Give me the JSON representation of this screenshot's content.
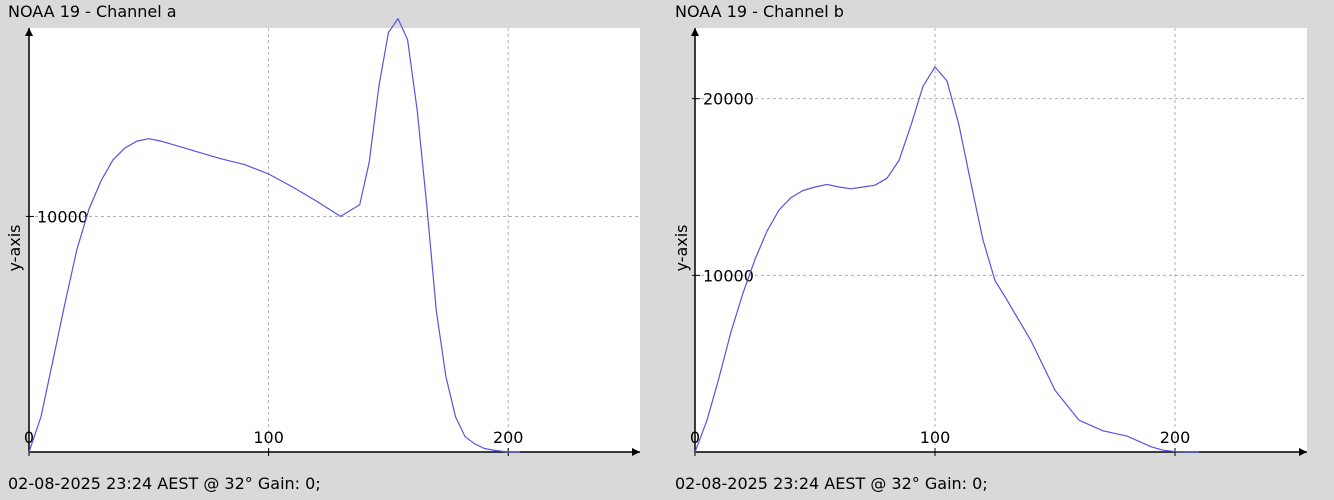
{
  "chart_data": [
    {
      "type": "line",
      "title": "NOAA 19 - Channel a",
      "footer": "02-08-2025 23:24 AEST @ 32° Gain: 0;",
      "xlabel": "",
      "ylabel": "y-axis",
      "xlim": [
        0,
        255
      ],
      "ylim": [
        0,
        18000
      ],
      "xticks": [
        0,
        100,
        200
      ],
      "xtick_labels": [
        "0",
        "100",
        "200"
      ],
      "yticks": [
        10000
      ],
      "ytick_labels": [
        "10000"
      ],
      "grid": true,
      "line_color": "#5555dd",
      "series": [
        {
          "x": [
            0,
            5,
            10,
            15,
            20,
            25,
            30,
            35,
            40,
            45,
            50,
            55,
            60,
            65,
            70,
            75,
            80,
            90,
            100,
            110,
            120,
            130,
            138,
            142,
            146,
            150,
            154,
            158,
            162,
            166,
            170,
            174,
            178,
            182,
            186,
            190,
            195,
            200,
            205
          ],
          "y": [
            0,
            1500,
            3900,
            6300,
            8600,
            10300,
            11500,
            12400,
            12900,
            13200,
            13300,
            13200,
            13050,
            12900,
            12750,
            12600,
            12450,
            12200,
            11800,
            11250,
            10650,
            10000,
            10500,
            12300,
            15500,
            17800,
            18400,
            17500,
            14500,
            10500,
            6000,
            3200,
            1500,
            650,
            350,
            150,
            60,
            0,
            0
          ]
        }
      ]
    },
    {
      "type": "line",
      "title": "NOAA 19 - Channel b",
      "footer": "02-08-2025 23:24 AEST @ 32° Gain: 0;",
      "xlabel": "",
      "ylabel": "y-axis",
      "xlim": [
        0,
        255
      ],
      "ylim": [
        0,
        24000
      ],
      "xticks": [
        0,
        100,
        200
      ],
      "xtick_labels": [
        "0",
        "100",
        "200"
      ],
      "yticks": [
        10000,
        20000
      ],
      "ytick_labels": [
        "10000",
        "20000"
      ],
      "grid": true,
      "line_color": "#5555dd",
      "series": [
        {
          "x": [
            0,
            5,
            10,
            15,
            20,
            25,
            30,
            35,
            40,
            45,
            50,
            55,
            60,
            65,
            70,
            75,
            80,
            85,
            90,
            95,
            100,
            105,
            110,
            115,
            120,
            125,
            130,
            140,
            150,
            160,
            170,
            180,
            190,
            195,
            200,
            210
          ],
          "y": [
            0,
            1800,
            4200,
            6800,
            9000,
            10900,
            12500,
            13700,
            14400,
            14800,
            15000,
            15150,
            15000,
            14900,
            15000,
            15100,
            15500,
            16500,
            18500,
            20700,
            21800,
            21000,
            18500,
            15200,
            12000,
            9700,
            8600,
            6300,
            3500,
            1800,
            1200,
            900,
            300,
            100,
            20,
            0
          ]
        }
      ]
    }
  ]
}
